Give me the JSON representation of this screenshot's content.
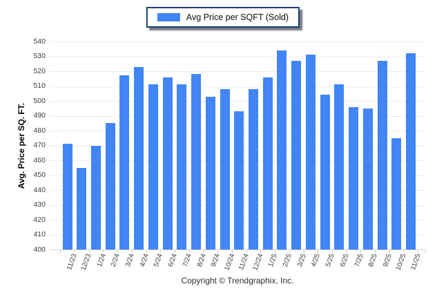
{
  "legend": {
    "label": "Avg Price per SQFT (Sold)",
    "swatch_color": "#4285F4"
  },
  "chart_data": {
    "type": "bar",
    "title": "",
    "xlabel": "",
    "ylabel": "Avg. Price per SQ. FT.",
    "legend_position": "top-center",
    "grid": "horizontal",
    "ylim": [
      400,
      540
    ],
    "ytick_step": 10,
    "bar_color": "#4285F4",
    "series_name": "Avg Price per SQFT (Sold)",
    "categories": [
      "11/23",
      "12/23",
      "1/24",
      "2/24",
      "3/24",
      "4/24",
      "5/24",
      "6/24",
      "7/24",
      "8/24",
      "9/24",
      "10/24",
      "11/24",
      "12/24",
      "1/25",
      "2/25",
      "3/25",
      "4/25",
      "5/25",
      "6/25",
      "7/25",
      "8/25",
      "9/25",
      "10/25",
      "11/25"
    ],
    "values": [
      471,
      455,
      470,
      485,
      517,
      523,
      511,
      516,
      511,
      518,
      503,
      508,
      493,
      508,
      516,
      534,
      527,
      531,
      504,
      511,
      496,
      495,
      527,
      475,
      532
    ]
  },
  "footer": {
    "copyright": "Copyright © Trendgraphix, Inc."
  }
}
